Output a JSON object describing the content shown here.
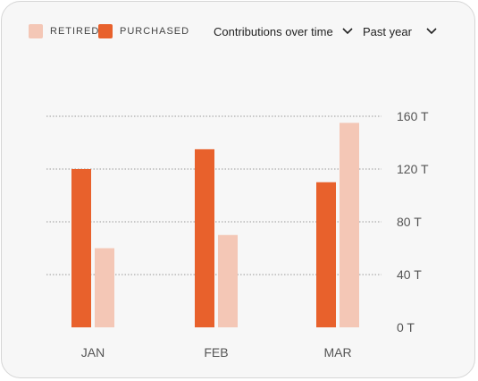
{
  "legend": [
    {
      "label": "RETIRED",
      "color": "#f4c7b6"
    },
    {
      "label": "PURCHASED",
      "color": "#e8612c"
    }
  ],
  "controls": {
    "metric": {
      "label": "Contributions over time",
      "icon": "chevron-down-icon"
    },
    "period": {
      "label": "Past year",
      "icon": "chevron-down-icon"
    }
  },
  "chart_data": {
    "type": "bar",
    "categories": [
      "JAN",
      "FEB",
      "MAR"
    ],
    "series": [
      {
        "name": "PURCHASED",
        "values": [
          120,
          135,
          110
        ],
        "color": "#e8612c"
      },
      {
        "name": "RETIRED",
        "values": [
          60,
          70,
          155
        ],
        "color": "#f4c7b6"
      }
    ],
    "yticks": [
      "0 T",
      "40 T",
      "80 T",
      "120 T",
      "160 T"
    ],
    "ytick_values": [
      0,
      40,
      80,
      120,
      160
    ],
    "ylim": [
      0,
      160
    ],
    "grid": true,
    "gridline_style": "dotted",
    "ytick_side": "right",
    "legend_position": "top-left"
  }
}
